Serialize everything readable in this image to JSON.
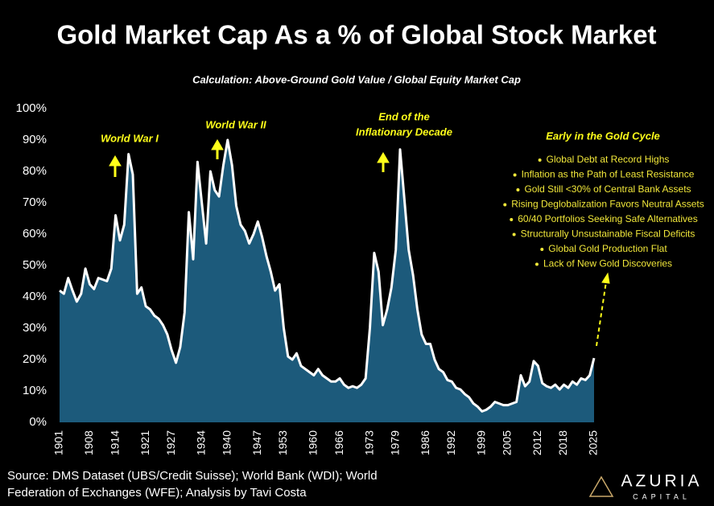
{
  "chart_data": {
    "type": "area",
    "title": "Gold Market Cap As a % of Global Stock Market",
    "subtitle": "Calculation: Above-Ground Gold Value / Global Equity Market Cap",
    "x": [
      1901,
      1902,
      1903,
      1904,
      1905,
      1906,
      1907,
      1908,
      1909,
      1910,
      1911,
      1912,
      1913,
      1914,
      1915,
      1916,
      1917,
      1918,
      1919,
      1920,
      1921,
      1922,
      1923,
      1924,
      1925,
      1926,
      1927,
      1928,
      1929,
      1930,
      1931,
      1932,
      1933,
      1934,
      1935,
      1936,
      1937,
      1938,
      1939,
      1940,
      1941,
      1942,
      1943,
      1944,
      1945,
      1946,
      1947,
      1948,
      1949,
      1950,
      1951,
      1952,
      1953,
      1954,
      1955,
      1956,
      1957,
      1958,
      1959,
      1960,
      1961,
      1962,
      1963,
      1964,
      1965,
      1966,
      1967,
      1968,
      1969,
      1970,
      1971,
      1972,
      1973,
      1974,
      1975,
      1976,
      1977,
      1978,
      1979,
      1980,
      1981,
      1982,
      1983,
      1984,
      1985,
      1986,
      1987,
      1988,
      1989,
      1990,
      1991,
      1992,
      1993,
      1994,
      1995,
      1996,
      1997,
      1998,
      1999,
      2000,
      2001,
      2002,
      2003,
      2004,
      2005,
      2006,
      2007,
      2008,
      2009,
      2010,
      2011,
      2012,
      2013,
      2014,
      2015,
      2016,
      2017,
      2018,
      2019,
      2020,
      2021,
      2022,
      2023,
      2024,
      2025
    ],
    "values": [
      42,
      41,
      46,
      42,
      38.5,
      41,
      49,
      44,
      42.5,
      46,
      45.5,
      45,
      49,
      66,
      58,
      63,
      85.5,
      79,
      41,
      43,
      37,
      36,
      34,
      33,
      31,
      28,
      23,
      19,
      24,
      35,
      67,
      52,
      83,
      70,
      57,
      80,
      74,
      72,
      82,
      90,
      82,
      69,
      63,
      61,
      57,
      60,
      64,
      59,
      53,
      48,
      42,
      44,
      30,
      21,
      20,
      22,
      18,
      17,
      16,
      15,
      17,
      15,
      14,
      13,
      13,
      14,
      12,
      11,
      11.5,
      11,
      12,
      14,
      30,
      54,
      48,
      31,
      36,
      43,
      55,
      87,
      71,
      55,
      47,
      36,
      28,
      25,
      25,
      20,
      17,
      16,
      13.5,
      13,
      11,
      10.5,
      9,
      8,
      6,
      5,
      3.5,
      4,
      5,
      6.5,
      6,
      5.5,
      5.5,
      6,
      6.5,
      15,
      11.5,
      13,
      19.5,
      18,
      12.5,
      11.5,
      11,
      12,
      10.5,
      12,
      11,
      13,
      12,
      14,
      13.5,
      15,
      20.5
    ],
    "color": "#1c5a7b",
    "line_color": "#ffffff",
    "xlim": [
      1901,
      2025
    ],
    "xticks": [
      1901,
      1908,
      1914,
      1921,
      1927,
      1934,
      1940,
      1947,
      1953,
      1960,
      1966,
      1973,
      1979,
      1986,
      1992,
      1999,
      2005,
      2012,
      2018,
      2025
    ],
    "ylim": [
      0,
      100
    ],
    "yticks": [
      {
        "value": 0,
        "label": "0%"
      },
      {
        "value": 10,
        "label": "10%"
      },
      {
        "value": 20,
        "label": "20%"
      },
      {
        "value": 30,
        "label": "30%"
      },
      {
        "value": 40,
        "label": "40%"
      },
      {
        "value": 50,
        "label": "50%"
      },
      {
        "value": 60,
        "label": "60%"
      },
      {
        "value": 70,
        "label": "70%"
      },
      {
        "value": 80,
        "label": "80%"
      },
      {
        "value": 90,
        "label": "90%"
      },
      {
        "value": 100,
        "label": "100%"
      }
    ],
    "grid": false,
    "annotations": [
      {
        "lines": [
          "World War I"
        ]
      },
      {
        "lines": [
          "World War II"
        ]
      },
      {
        "lines": [
          "End of the",
          "Inflationary Decade"
        ]
      }
    ],
    "panel": {
      "heading": "Early in the Gold Cycle",
      "bullets": [
        "Global Debt at Record Highs",
        "Inflation as the Path of Least Resistance",
        "Gold Still <30% of Central Bank Assets",
        "Rising Deglobalization Favors Neutral Assets",
        "60/40 Portfolios Seeking Safe Alternatives",
        "Structurally Unsustainable Fiscal Deficits",
        "Global Gold Production Flat",
        "Lack of New Gold Discoveries"
      ]
    },
    "source": [
      "Source: DMS Dataset (UBS/Credit Suisse); World Bank (WDI); World",
      "Federation of Exchanges (WFE); Analysis by Tavi Costa"
    ],
    "logo": {
      "name": "AZURIA",
      "tagline": "CAPITAL"
    }
  }
}
